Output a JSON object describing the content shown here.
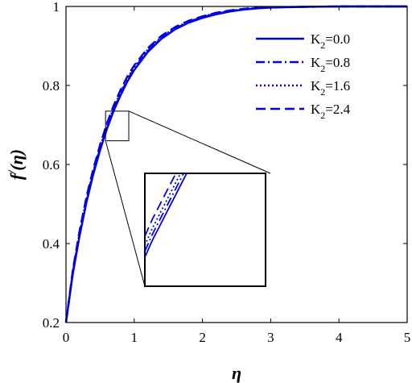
{
  "chart_data": {
    "type": "line",
    "title": "",
    "xlabel": "η",
    "ylabel_main": "f",
    "ylabel_prime": "/",
    "ylabel_arg": "(η)",
    "xlim": [
      0,
      5
    ],
    "ylim": [
      0.2,
      1
    ],
    "xticks": [
      0,
      1,
      2,
      3,
      4,
      5
    ],
    "yticks": [
      0.2,
      0.4,
      0.6,
      0.8,
      1
    ],
    "ytick_labels": [
      "0.2",
      "0.4",
      "0.6",
      "0.8",
      "1"
    ],
    "grid": false,
    "legend_position": "top-right",
    "line_color": "#0000e0",
    "x": [
      0,
      0.1,
      0.2,
      0.3,
      0.4,
      0.5,
      0.6,
      0.7,
      0.8,
      0.9,
      1.0,
      1.2,
      1.4,
      1.6,
      1.8,
      2.0,
      2.2,
      2.4,
      2.6,
      2.8,
      3.0,
      3.5,
      4.0,
      4.5,
      5.0
    ],
    "series": [
      {
        "name_main": "K",
        "name_sub": "2",
        "name_rest": "=0.0",
        "dash": "solid",
        "values": [
          0.2,
          0.323,
          0.42,
          0.504,
          0.575,
          0.636,
          0.69,
          0.736,
          0.775,
          0.81,
          0.839,
          0.885,
          0.918,
          0.942,
          0.959,
          0.971,
          0.98,
          0.987,
          0.992,
          0.995,
          0.997,
          0.999,
          1.0,
          1.0,
          1.0
        ]
      },
      {
        "name_main": "K",
        "name_sub": "2",
        "name_rest": "=0.8",
        "dash": "dashdot",
        "values": [
          0.2,
          0.326,
          0.424,
          0.508,
          0.579,
          0.64,
          0.694,
          0.74,
          0.779,
          0.814,
          0.843,
          0.888,
          0.921,
          0.944,
          0.961,
          0.973,
          0.982,
          0.988,
          0.993,
          0.996,
          0.998,
          0.999,
          1.0,
          1.0,
          1.0
        ]
      },
      {
        "name_main": "K",
        "name_sub": "2",
        "name_rest": "=1.6",
        "dash": "dotted",
        "values": [
          0.2,
          0.329,
          0.428,
          0.512,
          0.583,
          0.644,
          0.698,
          0.744,
          0.783,
          0.818,
          0.846,
          0.891,
          0.923,
          0.946,
          0.962,
          0.974,
          0.983,
          0.989,
          0.993,
          0.996,
          0.998,
          0.999,
          1.0,
          1.0,
          1.0
        ]
      },
      {
        "name_main": "K",
        "name_sub": "2",
        "name_rest": "=2.4",
        "dash": "dashed",
        "values": [
          0.2,
          0.333,
          0.433,
          0.518,
          0.589,
          0.65,
          0.704,
          0.75,
          0.789,
          0.823,
          0.851,
          0.895,
          0.926,
          0.948,
          0.964,
          0.975,
          0.984,
          0.99,
          0.994,
          0.997,
          0.998,
          0.999,
          1.0,
          1.0,
          1.0
        ]
      }
    ],
    "inset": {
      "zoom_x": [
        0.58,
        0.92
      ],
      "zoom_y": [
        0.66,
        0.735
      ]
    }
  }
}
